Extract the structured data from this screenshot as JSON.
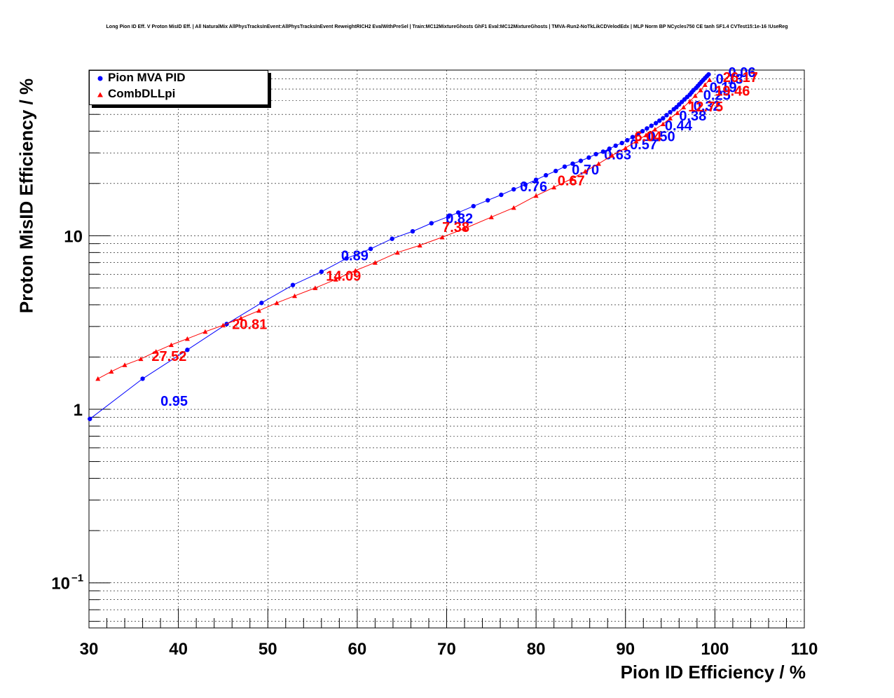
{
  "title": "Long Pion ID Eff. V Proton MisID Eff. | All NaturalMix AllPhysTracksInEvent:AllPhysTracksInEvent ReweightRICH2 EvalWithPreSel | Train:MC12MixtureGhosts GhF1 Eval:MC12MixtureGhosts | TMVA-Run2-NoTkLikCDVelodEdx | MLP Norm BP NCycles750 CE tanh SF1.4 CVTest15:1e-16 !UseReg",
  "chart_data": {
    "type": "scatter",
    "xlabel": "Pion ID Efficiency / %",
    "ylabel": "Proton MisID Efficiency / %",
    "xlim": [
      30,
      110
    ],
    "ylim": [
      0.055,
      90
    ],
    "y_scale": "log",
    "x_ticks": [
      "30",
      "40",
      "50",
      "60",
      "70",
      "80",
      "90",
      "100",
      "110"
    ],
    "y_ticks": [
      {
        "value": 0.1,
        "base": "10",
        "exp": "−1"
      },
      {
        "value": 1,
        "base": "1",
        "exp": ""
      },
      {
        "value": 10,
        "base": "10",
        "exp": ""
      }
    ],
    "grid": true,
    "legend_position": "top-left",
    "series": [
      {
        "name": "Pion MVA PID",
        "color": "#0000ff",
        "marker": "circle",
        "x": [
          30.1,
          36.0,
          41.0,
          45.4,
          49.3,
          52.8,
          56.0,
          58.8,
          61.5,
          63.9,
          66.2,
          68.3,
          70.2,
          71.3,
          73.0,
          74.6,
          76.1,
          77.5,
          78.8,
          80.0,
          81.1,
          82.2,
          83.2,
          84.1,
          85.0,
          85.9,
          86.7,
          87.5,
          88.2,
          88.9,
          89.6,
          90.2,
          90.8,
          91.4,
          91.9,
          92.4,
          92.9,
          93.4,
          93.8,
          94.2,
          94.6,
          95.0,
          95.4,
          95.7,
          96.0,
          96.3,
          96.6,
          96.9,
          97.2,
          97.4,
          97.6,
          97.9,
          98.1,
          98.3,
          98.5,
          98.7,
          98.9,
          99.1,
          99.3
        ],
        "y": [
          0.88,
          1.5,
          2.2,
          3.1,
          4.1,
          5.2,
          6.2,
          7.4,
          8.4,
          9.6,
          10.6,
          11.8,
          12.9,
          13.6,
          14.8,
          16.0,
          17.2,
          18.5,
          19.7,
          21.0,
          22.3,
          23.6,
          25.0,
          26.0,
          27.0,
          28.2,
          29.5,
          30.5,
          31.7,
          33.0,
          34.2,
          35.5,
          37.0,
          38.5,
          40.0,
          41.5,
          43.0,
          44.5,
          46.0,
          47.5,
          49.5,
          51.5,
          53.5,
          55.0,
          57.0,
          59.0,
          61.0,
          63.0,
          65.0,
          67.0,
          69.0,
          71.0,
          73.0,
          75.0,
          77.0,
          79.0,
          81.0,
          83.0,
          85.0
        ],
        "labels": [
          {
            "x": 38.0,
            "y": 1.05,
            "text": "0.95"
          },
          {
            "x": 58.2,
            "y": 7.2,
            "text": "0.89"
          },
          {
            "x": 69.9,
            "y": 11.8,
            "text": "0.82"
          },
          {
            "x": 78.2,
            "y": 18.0,
            "text": "0.76"
          },
          {
            "x": 84.0,
            "y": 22.5,
            "text": "0.70"
          },
          {
            "x": 87.6,
            "y": 27.5,
            "text": "0.63"
          },
          {
            "x": 90.5,
            "y": 31.5,
            "text": "0.57"
          },
          {
            "x": 92.5,
            "y": 35.0,
            "text": "0.50"
          },
          {
            "x": 94.4,
            "y": 40.5,
            "text": "0.44"
          },
          {
            "x": 96.0,
            "y": 46.0,
            "text": "0.38"
          },
          {
            "x": 97.6,
            "y": 52.5,
            "text": "0.32"
          },
          {
            "x": 98.7,
            "y": 60.5,
            "text": "0.25"
          },
          {
            "x": 99.4,
            "y": 67.0,
            "text": "0.19"
          },
          {
            "x": 100.1,
            "y": 75.0,
            "text": "0.13"
          },
          {
            "x": 101.5,
            "y": 82.0,
            "text": "0.06"
          }
        ]
      },
      {
        "name": "CombDLLpi",
        "color": "#ff0000",
        "marker": "triangle",
        "x": [
          31.0,
          32.5,
          34.0,
          35.8,
          37.5,
          39.2,
          41.0,
          43.0,
          45.0,
          47.0,
          49.0,
          51.0,
          53.0,
          55.3,
          57.6,
          59.8,
          62.0,
          64.5,
          67.0,
          69.5,
          72.0,
          75.0,
          77.5,
          80.0,
          82.0,
          84.0,
          85.5,
          87.0,
          88.5,
          90.0,
          91.2,
          92.3,
          93.3,
          94.2,
          95.0,
          95.8,
          96.5,
          97.2,
          97.8,
          98.4,
          98.9,
          99.4
        ],
        "y": [
          1.5,
          1.65,
          1.8,
          1.95,
          2.15,
          2.35,
          2.55,
          2.8,
          3.05,
          3.35,
          3.7,
          4.1,
          4.5,
          5.0,
          5.6,
          6.3,
          7.0,
          8.0,
          8.8,
          9.8,
          11.0,
          12.8,
          14.5,
          17.0,
          19.0,
          21.3,
          23.5,
          26.0,
          29.0,
          32.0,
          35.0,
          38.0,
          41.0,
          44.0,
          47.5,
          51.0,
          55.0,
          59.5,
          64.0,
          69.0,
          74.0,
          79.0
        ],
        "labels": [
          {
            "x": 37.0,
            "y": 1.9,
            "text": "27.52"
          },
          {
            "x": 46.0,
            "y": 2.9,
            "text": "20.81"
          },
          {
            "x": 56.5,
            "y": 5.5,
            "text": "14.09"
          },
          {
            "x": 69.5,
            "y": 10.5,
            "text": "7.38"
          },
          {
            "x": 82.4,
            "y": 19.5,
            "text": "0.67"
          },
          {
            "x": 91.0,
            "y": 35.0,
            "text": "6.04"
          },
          {
            "x": 97.0,
            "y": 52.0,
            "text": "12.75"
          },
          {
            "x": 100.0,
            "y": 64.0,
            "text": "19.46"
          },
          {
            "x": 100.9,
            "y": 77.0,
            "text": "26.17"
          }
        ]
      }
    ]
  }
}
